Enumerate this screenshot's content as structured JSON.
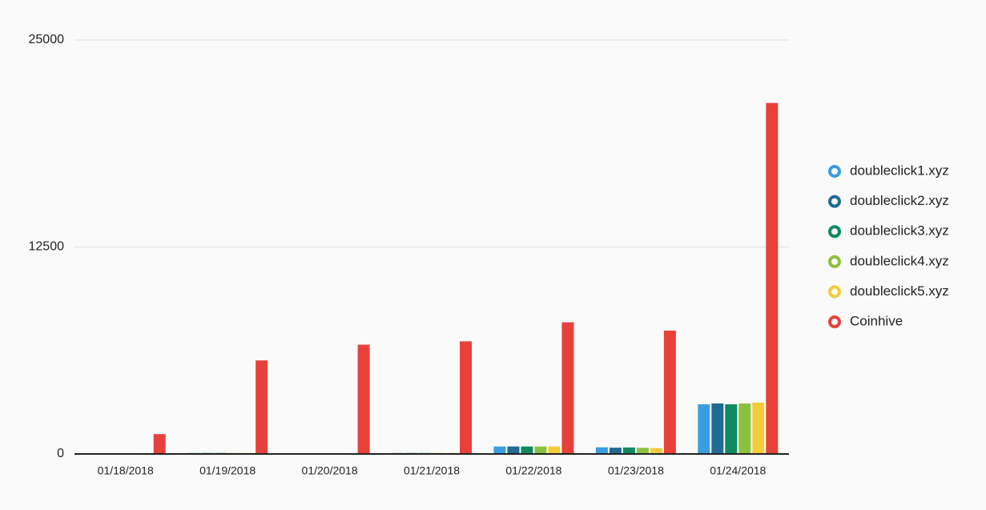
{
  "chart_data": {
    "type": "bar",
    "categories": [
      "01/18/2018",
      "01/19/2018",
      "01/20/2018",
      "01/21/2018",
      "01/22/2018",
      "01/23/2018",
      "01/24/2018"
    ],
    "series": [
      {
        "name": "doubleclick1.xyz",
        "color": "#3b9de0",
        "values": [
          20,
          60,
          30,
          60,
          450,
          400,
          3000
        ]
      },
      {
        "name": "doubleclick2.xyz",
        "color": "#1f6b94",
        "values": [
          20,
          60,
          30,
          60,
          450,
          380,
          3050
        ]
      },
      {
        "name": "doubleclick3.xyz",
        "color": "#0f8a5f",
        "values": [
          20,
          60,
          30,
          60,
          450,
          390,
          3000
        ]
      },
      {
        "name": "doubleclick4.xyz",
        "color": "#8cc13f",
        "values": [
          20,
          60,
          30,
          60,
          450,
          370,
          3050
        ]
      },
      {
        "name": "doubleclick5.xyz",
        "color": "#f4cc3a",
        "values": [
          20,
          60,
          30,
          60,
          450,
          350,
          3100
        ]
      },
      {
        "name": "Coinhive",
        "color": "#e8413a",
        "values": [
          1200,
          5650,
          6600,
          6800,
          7950,
          7450,
          21200
        ]
      }
    ],
    "ylim": [
      0,
      25000
    ],
    "yticks": [
      0,
      12500,
      25000
    ],
    "grid": true,
    "legend": "right"
  }
}
